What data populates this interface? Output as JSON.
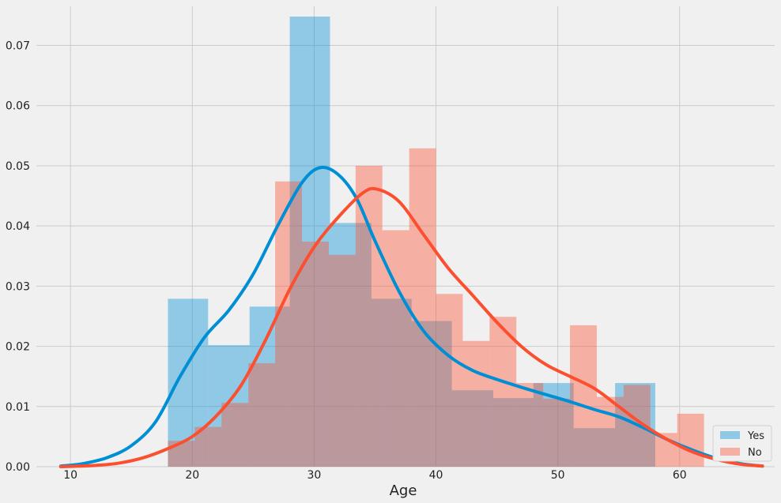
{
  "chart_data": {
    "type": "histogram",
    "xlabel": "Age",
    "ylabel": "",
    "xlim": [
      7.2,
      67.8
    ],
    "ylim": [
      0,
      0.0765
    ],
    "xticks": [
      10,
      20,
      30,
      40,
      50,
      60
    ],
    "xtick_labels": [
      "10",
      "20",
      "30",
      "40",
      "50",
      "60"
    ],
    "yticks": [
      0.0,
      0.01,
      0.02,
      0.03,
      0.04,
      0.05,
      0.06,
      0.07
    ],
    "ytick_labels": [
      "0.00",
      "0.01",
      "0.02",
      "0.03",
      "0.04",
      "0.05",
      "0.06",
      "0.07"
    ],
    "grid": true,
    "legend": {
      "position": "bottom-right"
    },
    "series": [
      {
        "name": "Yes",
        "color": "#008fd5",
        "bins": [
          {
            "x0": 18.0,
            "x1": 21.3,
            "value": 0.0279
          },
          {
            "x0": 21.3,
            "x1": 24.7,
            "value": 0.0202
          },
          {
            "x0": 24.7,
            "x1": 28.0,
            "value": 0.0266
          },
          {
            "x0": 28.0,
            "x1": 31.3,
            "value": 0.0748
          },
          {
            "x0": 31.3,
            "x1": 34.7,
            "value": 0.0405
          },
          {
            "x0": 34.7,
            "x1": 38.0,
            "value": 0.0279
          },
          {
            "x0": 38.0,
            "x1": 41.3,
            "value": 0.0242
          },
          {
            "x0": 41.3,
            "x1": 44.7,
            "value": 0.0127
          },
          {
            "x0": 44.7,
            "x1": 48.0,
            "value": 0.0114
          },
          {
            "x0": 48.0,
            "x1": 51.3,
            "value": 0.0139
          },
          {
            "x0": 51.3,
            "x1": 54.7,
            "value": 0.0064
          },
          {
            "x0": 54.7,
            "x1": 58.0,
            "value": 0.0139
          }
        ],
        "kde": [
          [
            9.2,
            0.0001
          ],
          [
            11,
            0.0005
          ],
          [
            13,
            0.0015
          ],
          [
            15,
            0.0035
          ],
          [
            17,
            0.0075
          ],
          [
            19,
            0.015
          ],
          [
            21,
            0.0215
          ],
          [
            23,
            0.026
          ],
          [
            25,
            0.032
          ],
          [
            27,
            0.04
          ],
          [
            29,
            0.0472
          ],
          [
            30.5,
            0.0497
          ],
          [
            32,
            0.0485
          ],
          [
            33.5,
            0.0445
          ],
          [
            35,
            0.0375
          ],
          [
            37,
            0.029
          ],
          [
            39,
            0.0225
          ],
          [
            41,
            0.0185
          ],
          [
            43,
            0.016
          ],
          [
            45,
            0.0145
          ],
          [
            47,
            0.0132
          ],
          [
            49,
            0.012
          ],
          [
            51,
            0.0108
          ],
          [
            53,
            0.0095
          ],
          [
            55,
            0.0083
          ],
          [
            57,
            0.0065
          ],
          [
            59,
            0.0045
          ],
          [
            61,
            0.0028
          ],
          [
            63,
            0.0014
          ],
          [
            65,
            0.0005
          ],
          [
            66.8,
            0.0001
          ]
        ]
      },
      {
        "name": "No",
        "color": "#fc4f30",
        "bins": [
          {
            "x0": 18.0,
            "x1": 20.2,
            "value": 0.0043
          },
          {
            "x0": 20.2,
            "x1": 22.4,
            "value": 0.0066
          },
          {
            "x0": 22.4,
            "x1": 24.6,
            "value": 0.0106
          },
          {
            "x0": 24.6,
            "x1": 26.8,
            "value": 0.0172
          },
          {
            "x0": 26.8,
            "x1": 29.0,
            "value": 0.0474
          },
          {
            "x0": 29.0,
            "x1": 31.2,
            "value": 0.0374
          },
          {
            "x0": 31.2,
            "x1": 33.4,
            "value": 0.0352
          },
          {
            "x0": 33.4,
            "x1": 35.6,
            "value": 0.05
          },
          {
            "x0": 35.6,
            "x1": 37.8,
            "value": 0.0393
          },
          {
            "x0": 37.8,
            "x1": 40.0,
            "value": 0.0529
          },
          {
            "x0": 40.0,
            "x1": 42.2,
            "value": 0.0287
          },
          {
            "x0": 42.2,
            "x1": 44.4,
            "value": 0.0209
          },
          {
            "x0": 44.4,
            "x1": 46.6,
            "value": 0.0249
          },
          {
            "x0": 46.6,
            "x1": 48.8,
            "value": 0.0139
          },
          {
            "x0": 48.8,
            "x1": 51.0,
            "value": 0.0113
          },
          {
            "x0": 51.0,
            "x1": 53.2,
            "value": 0.0235
          },
          {
            "x0": 53.2,
            "x1": 55.4,
            "value": 0.0116
          },
          {
            "x0": 55.4,
            "x1": 57.6,
            "value": 0.0136
          },
          {
            "x0": 57.6,
            "x1": 59.8,
            "value": 0.0056
          },
          {
            "x0": 59.8,
            "x1": 62.0,
            "value": 0.0088
          }
        ],
        "kde": [
          [
            9.2,
            0.0
          ],
          [
            12,
            0.0002
          ],
          [
            14,
            0.0006
          ],
          [
            16,
            0.0015
          ],
          [
            18,
            0.003
          ],
          [
            20,
            0.005
          ],
          [
            22,
            0.0085
          ],
          [
            24,
            0.0135
          ],
          [
            26,
            0.021
          ],
          [
            28,
            0.0295
          ],
          [
            30,
            0.0365
          ],
          [
            32,
            0.0415
          ],
          [
            34,
            0.0455
          ],
          [
            35.2,
            0.0461
          ],
          [
            37,
            0.044
          ],
          [
            39,
            0.0385
          ],
          [
            41,
            0.033
          ],
          [
            43,
            0.0285
          ],
          [
            45,
            0.024
          ],
          [
            47,
            0.02
          ],
          [
            49,
            0.017
          ],
          [
            51,
            0.015
          ],
          [
            53,
            0.013
          ],
          [
            55,
            0.01
          ],
          [
            57,
            0.007
          ],
          [
            59,
            0.0045
          ],
          [
            61,
            0.0025
          ],
          [
            63,
            0.0012
          ],
          [
            65,
            0.0004
          ],
          [
            66.8,
            0.0001
          ]
        ]
      }
    ]
  }
}
